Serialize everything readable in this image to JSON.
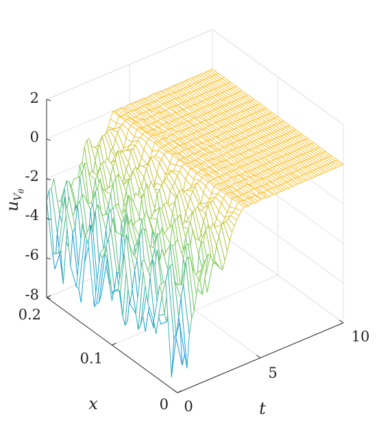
{
  "chart_data": {
    "type": "surface-mesh",
    "title": "",
    "xlabel": "t",
    "ylabel": "x",
    "zlabel": "u",
    "zlabel_subscript": "V",
    "zlabel_subsubscript": "θ",
    "xlim": [
      0,
      10
    ],
    "ylim": [
      0,
      0.2
    ],
    "zlim": [
      -8,
      2
    ],
    "t_ticks": [
      "0",
      "5",
      "10"
    ],
    "x_ticks": [
      "0",
      "0.1",
      "0.2"
    ],
    "z_ticks": [
      "2",
      "0",
      "-2",
      "-4",
      "-6",
      "-8"
    ],
    "grid": true,
    "colormap": "parula",
    "plateau_value": 0,
    "plateau_starts_at_t": 4,
    "min_value_near_t0": -8,
    "colors": {
      "low": "#3e26a8",
      "mid": "#1ca6df",
      "high": "#7fcc5a",
      "top": "#fec234"
    }
  }
}
